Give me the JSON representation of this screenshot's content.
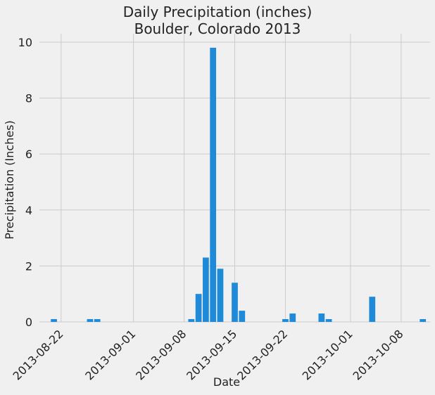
{
  "chart_data": {
    "type": "bar",
    "title": "Daily Precipitation (inches)",
    "subtitle": "Boulder, Colorado 2013",
    "xlabel": "Date",
    "ylabel": "Precipitation (Inches)",
    "x_range": [
      "2013-08-19",
      "2013-10-11"
    ],
    "ylim": [
      0,
      10.3
    ],
    "y_ticks": [
      0,
      2,
      4,
      6,
      8,
      10
    ],
    "x_ticks": [
      "2013-08-22",
      "2013-09-01",
      "2013-09-08",
      "2013-09-15",
      "2013-09-22",
      "2013-10-01",
      "2013-10-08"
    ],
    "grid": true,
    "bar_color": "#1f8ad8",
    "background_color": "#f0f0f0",
    "grid_color": "#cbcbcb",
    "points": [
      {
        "date": "2013-08-21",
        "value": 0.1
      },
      {
        "date": "2013-08-26",
        "value": 0.1
      },
      {
        "date": "2013-08-27",
        "value": 0.1
      },
      {
        "date": "2013-09-09",
        "value": 0.1
      },
      {
        "date": "2013-09-10",
        "value": 1.0
      },
      {
        "date": "2013-09-11",
        "value": 2.3
      },
      {
        "date": "2013-09-12",
        "value": 9.8
      },
      {
        "date": "2013-09-13",
        "value": 1.9
      },
      {
        "date": "2013-09-15",
        "value": 1.4
      },
      {
        "date": "2013-09-16",
        "value": 0.4
      },
      {
        "date": "2013-09-22",
        "value": 0.1
      },
      {
        "date": "2013-09-23",
        "value": 0.3
      },
      {
        "date": "2013-09-27",
        "value": 0.3
      },
      {
        "date": "2013-09-28",
        "value": 0.1
      },
      {
        "date": "2013-10-04",
        "value": 0.9
      },
      {
        "date": "2013-10-11",
        "value": 0.1
      }
    ]
  }
}
